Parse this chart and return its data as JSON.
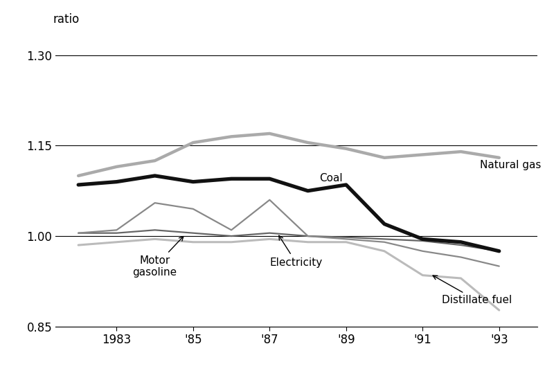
{
  "years": [
    1982,
    1983,
    1984,
    1985,
    1986,
    1987,
    1988,
    1989,
    1990,
    1991,
    1992,
    1993
  ],
  "natural_gas": [
    1.1,
    1.115,
    1.125,
    1.155,
    1.165,
    1.17,
    1.155,
    1.145,
    1.13,
    1.135,
    1.14,
    1.13
  ],
  "coal": [
    1.085,
    1.09,
    1.1,
    1.09,
    1.095,
    1.095,
    1.075,
    1.085,
    1.02,
    0.995,
    0.99,
    0.975
  ],
  "motor_gasoline": [
    1.005,
    1.005,
    1.01,
    1.005,
    1.0,
    1.005,
    1.0,
    0.998,
    0.995,
    0.992,
    0.985,
    0.975
  ],
  "electricity": [
    1.005,
    1.01,
    1.055,
    1.045,
    1.01,
    1.06,
    1.0,
    0.995,
    0.99,
    0.975,
    0.965,
    0.95
  ],
  "distillate_fuel": [
    0.985,
    0.99,
    0.995,
    0.99,
    0.99,
    0.995,
    0.99,
    0.99,
    0.975,
    0.935,
    0.93,
    0.877
  ],
  "colors": {
    "natural_gas": "#aaaaaa",
    "coal": "#111111",
    "motor_gasoline": "#666666",
    "electricity": "#888888",
    "distillate_fuel": "#bbbbbb"
  },
  "linewidths": {
    "natural_gas": 3.2,
    "coal": 3.8,
    "motor_gasoline": 1.6,
    "electricity": 1.6,
    "distillate_fuel": 2.2
  },
  "ylabel": "ratio",
  "ylim": [
    0.85,
    1.33
  ],
  "yticks": [
    0.85,
    1.0,
    1.15,
    1.3
  ],
  "xtick_labels": [
    "1983",
    "'85",
    "'87",
    "'89",
    "'91",
    "'93"
  ],
  "xtick_positions": [
    1983,
    1985,
    1987,
    1989,
    1991,
    1993
  ],
  "xlim": [
    1981.4,
    1994.0
  ],
  "background_color": "#ffffff"
}
